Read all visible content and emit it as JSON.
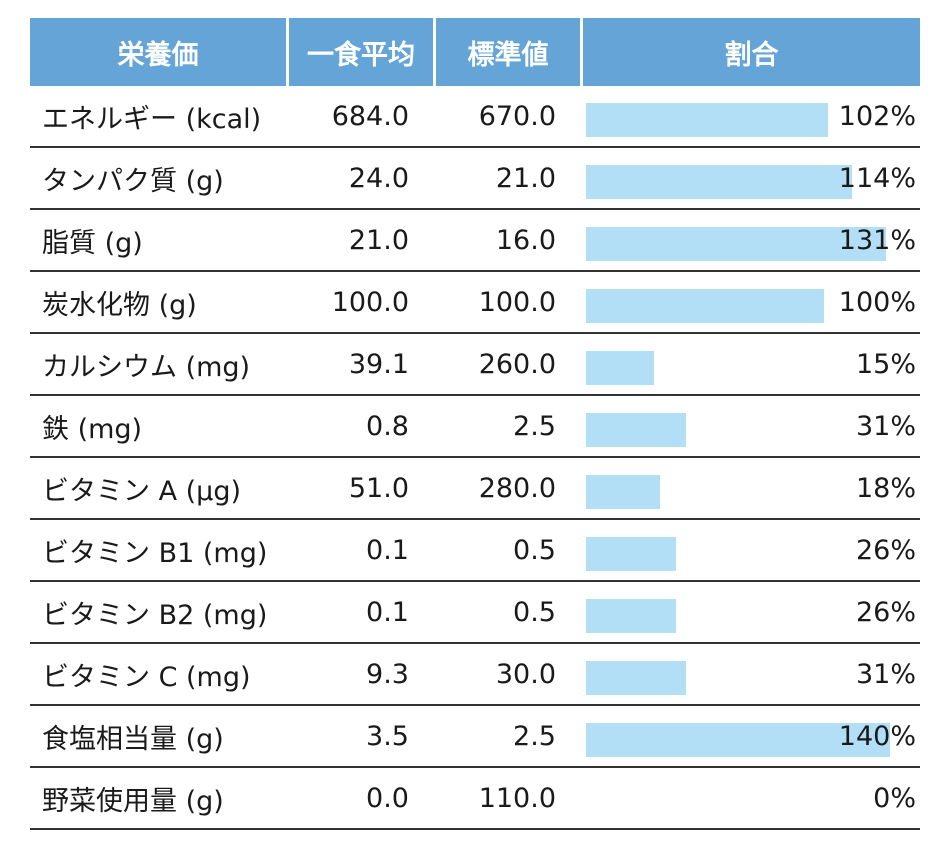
{
  "header": {
    "item": "栄養価",
    "average": "一食平均",
    "standard": "標準値",
    "ratio": "割合"
  },
  "rows": [
    {
      "name": "エネルギー (kcal)",
      "average": "684.0",
      "standard": "670.0",
      "ratio": "102%",
      "ratio_value": 102
    },
    {
      "name": "タンパク質 (g)",
      "average": "24.0",
      "standard": "21.0",
      "ratio": "114%",
      "ratio_value": 114
    },
    {
      "name": "脂質 (g)",
      "average": "21.0",
      "standard": "16.0",
      "ratio": "131%",
      "ratio_value": 131
    },
    {
      "name": "炭水化物 (g)",
      "average": "100.0",
      "standard": "100.0",
      "ratio": "100%",
      "ratio_value": 100
    },
    {
      "name": "カルシウム (mg)",
      "average": "39.1",
      "standard": "260.0",
      "ratio": "15%",
      "ratio_value": 15
    },
    {
      "name": "鉄 (mg)",
      "average": "0.8",
      "standard": "2.5",
      "ratio": "31%",
      "ratio_value": 31
    },
    {
      "name": "ビタミン A (μg)",
      "average": "51.0",
      "standard": "280.0",
      "ratio": "18%",
      "ratio_value": 18
    },
    {
      "name": "ビタミン B1 (mg)",
      "average": "0.1",
      "standard": "0.5",
      "ratio": "26%",
      "ratio_value": 26
    },
    {
      "name": "ビタミン B2 (mg)",
      "average": "0.1",
      "standard": "0.5",
      "ratio": "26%",
      "ratio_value": 26
    },
    {
      "name": "ビタミン C (mg)",
      "average": "9.3",
      "standard": "30.0",
      "ratio": "31%",
      "ratio_value": 31
    },
    {
      "name": "食塩相当量 (g)",
      "average": "3.5",
      "standard": "2.5",
      "ratio": "140%",
      "ratio_value": 140
    },
    {
      "name": "野菜使用量 (g)",
      "average": "0.0",
      "standard": "110.0",
      "ratio": "0%",
      "ratio_value": 0
    }
  ],
  "colors": {
    "header_bg": "#64a4d6",
    "bar": "#b3dff6",
    "rule": "#333333"
  }
}
